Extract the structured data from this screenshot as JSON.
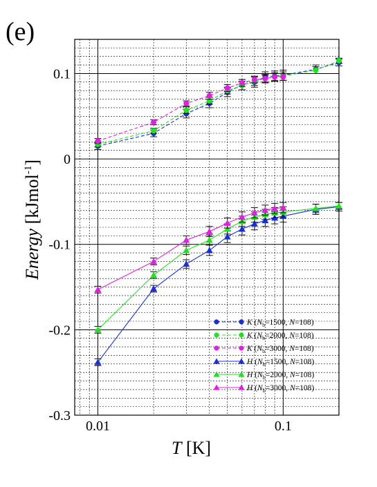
{
  "panel_label": "(e)",
  "chart_data": {
    "type": "line",
    "title": "",
    "xlabel_italic": "T",
    "xlabel_unit": " [K]",
    "ylabel_italic": "Energy",
    "ylabel_unit_base": "  [kJmol",
    "ylabel_unit_exp": "-1",
    "ylabel_unit_close": "]",
    "x_scale": "log",
    "xlim": [
      0.0075,
      0.2
    ],
    "ylim": [
      -0.3,
      0.14
    ],
    "x_ticks": [
      0.01,
      0.1
    ],
    "x_tick_labels": [
      "0.01",
      "0.1"
    ],
    "y_ticks": [
      -0.3,
      -0.2,
      -0.1,
      0,
      0.1
    ],
    "y_tick_labels": [
      "-0.3",
      "-0.2",
      "-0.1",
      "0",
      "0.1"
    ],
    "grid": true,
    "legend_position": "bottom-right",
    "series": [
      {
        "name_sym": "K",
        "name_open": " (N",
        "name_sub": "b",
        "name_mid": "=1500, ",
        "name_n": "N",
        "name_close": "=108)",
        "color": "#1a2fd6",
        "marker": "circle",
        "dashed": true,
        "x": [
          0.01,
          0.02,
          0.03,
          0.04,
          0.05,
          0.06,
          0.07,
          0.08,
          0.09,
          0.1,
          0.15,
          0.2
        ],
        "y": [
          0.015,
          0.03,
          0.053,
          0.065,
          0.078,
          0.087,
          0.09,
          0.096,
          0.097,
          0.098,
          0.105,
          0.113
        ],
        "err": [
          0.004,
          0.004,
          0.005,
          0.005,
          0.005,
          0.006,
          0.006,
          0.006,
          0.006,
          0.006,
          0.005,
          0.004
        ]
      },
      {
        "name_sym": "K",
        "name_open": " (N",
        "name_sub": "b",
        "name_mid": "=2000, ",
        "name_n": "N",
        "name_close": "=108)",
        "color": "#22e022",
        "marker": "circle",
        "dashed": true,
        "x": [
          0.01,
          0.02,
          0.03,
          0.04,
          0.05,
          0.06,
          0.07,
          0.08,
          0.09,
          0.1,
          0.15,
          0.2
        ],
        "y": [
          0.017,
          0.033,
          0.057,
          0.068,
          0.08,
          0.086,
          0.091,
          0.094,
          0.096,
          0.097,
          0.104,
          0.115
        ],
        "err": [
          0.003,
          0.003,
          0.004,
          0.004,
          0.004,
          0.005,
          0.005,
          0.005,
          0.005,
          0.005,
          0.004,
          0.003
        ]
      },
      {
        "name_sym": "K",
        "name_open": " (N",
        "name_sub": "b",
        "name_mid": "=3000, ",
        "name_n": "N",
        "name_close": "=108)",
        "color": "#e020e0",
        "marker": "circle",
        "dashed": true,
        "x": [
          0.01,
          0.02,
          0.03,
          0.04,
          0.05,
          0.06,
          0.07,
          0.08,
          0.09,
          0.1
        ],
        "y": [
          0.021,
          0.043,
          0.065,
          0.074,
          0.083,
          0.089,
          0.093,
          0.094,
          0.096,
          0.096
        ],
        "err": [
          0.003,
          0.003,
          0.003,
          0.004,
          0.004,
          0.004,
          0.004,
          0.004,
          0.004,
          0.004
        ]
      },
      {
        "name_sym": "H",
        "name_open": " (N",
        "name_sub": "b",
        "name_mid": "=1500, ",
        "name_n": "N",
        "name_close": "=108)",
        "color": "#1a2fd6",
        "marker": "triangle",
        "dashed": false,
        "x": [
          0.01,
          0.02,
          0.03,
          0.04,
          0.05,
          0.06,
          0.07,
          0.08,
          0.09,
          0.1,
          0.15,
          0.2
        ],
        "y": [
          -0.238,
          -0.152,
          -0.123,
          -0.107,
          -0.091,
          -0.082,
          -0.076,
          -0.072,
          -0.069,
          -0.067,
          -0.059,
          -0.056
        ],
        "err": [
          0.004,
          0.004,
          0.005,
          0.006,
          0.007,
          0.007,
          0.007,
          0.007,
          0.007,
          0.007,
          0.006,
          0.005
        ]
      },
      {
        "name_sym": "H",
        "name_open": " (N",
        "name_sub": "b",
        "name_mid": "=2000, ",
        "name_n": "N",
        "name_close": "=108)",
        "color": "#22e022",
        "marker": "triangle",
        "dashed": false,
        "x": [
          0.01,
          0.02,
          0.03,
          0.04,
          0.05,
          0.06,
          0.07,
          0.08,
          0.09,
          0.1,
          0.15,
          0.2
        ],
        "y": [
          -0.2,
          -0.136,
          -0.107,
          -0.095,
          -0.082,
          -0.073,
          -0.068,
          -0.065,
          -0.063,
          -0.062,
          -0.058,
          -0.055
        ],
        "err": [
          0.004,
          0.004,
          0.005,
          0.006,
          0.006,
          0.006,
          0.006,
          0.006,
          0.006,
          0.006,
          0.005,
          0.004
        ]
      },
      {
        "name_sym": "H",
        "name_open": " (N",
        "name_sub": "b",
        "name_mid": "=3000, ",
        "name_n": "N",
        "name_close": "=108)",
        "color": "#e020e0",
        "marker": "triangle",
        "dashed": false,
        "x": [
          0.01,
          0.02,
          0.03,
          0.04,
          0.05,
          0.06,
          0.07,
          0.08,
          0.09,
          0.1
        ],
        "y": [
          -0.153,
          -0.12,
          -0.095,
          -0.085,
          -0.075,
          -0.068,
          -0.063,
          -0.06,
          -0.058,
          -0.057
        ],
        "err": [
          0.004,
          0.004,
          0.005,
          0.006,
          0.006,
          0.006,
          0.006,
          0.006,
          0.006,
          0.006
        ]
      }
    ]
  }
}
